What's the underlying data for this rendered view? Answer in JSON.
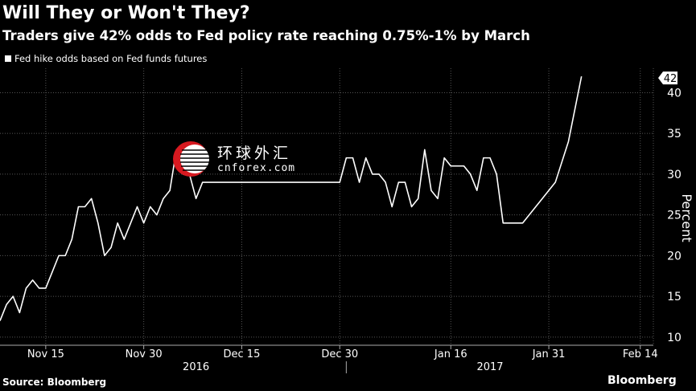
{
  "header": {
    "title": "Will They or Won't They?",
    "subtitle": "Traders give 42% odds to Fed policy rate reaching 0.75%-1% by March"
  },
  "legend": {
    "label": "Fed hike odds based on Fed funds futures"
  },
  "footer": {
    "source": "Source: Bloomberg",
    "brand": "Bloomberg"
  },
  "watermark": {
    "cn": "环球外汇",
    "en": "cnforex.com"
  },
  "colors": {
    "background": "#000000",
    "line": "#ffffff",
    "grid": "#555555"
  },
  "chart_data": {
    "type": "line",
    "title": "Will They or Won't They?",
    "subtitle": "Traders give 42% odds to Fed policy rate reaching 0.75%-1% by March",
    "xlabel": "",
    "ylabel": "Percent",
    "ylim": [
      9,
      43
    ],
    "yticks": [
      10,
      15,
      20,
      25,
      30,
      35,
      40
    ],
    "xlim": [
      "2016-11-08",
      "2017-02-16"
    ],
    "xticks": [
      {
        "date": "2016-11-15",
        "label": "Nov 15"
      },
      {
        "date": "2016-11-30",
        "label": "Nov 30"
      },
      {
        "date": "2016-12-15",
        "label": "Dec 15"
      },
      {
        "date": "2016-12-30",
        "label": "Dec 30"
      },
      {
        "date": "2017-01-16",
        "label": "Jan 16"
      },
      {
        "date": "2017-01-31",
        "label": "Jan 31"
      },
      {
        "date": "2017-02-14",
        "label": "Feb 14"
      }
    ],
    "year_labels": [
      {
        "label": "2016",
        "date": "2016-12-08"
      },
      {
        "label": "2017",
        "date": "2017-01-22"
      }
    ],
    "year_divider": "2016-12-31",
    "grid": true,
    "legend_position": "top-left",
    "end_label": "42",
    "series": [
      {
        "name": "Fed hike odds based on Fed funds futures",
        "points": [
          [
            "2016-11-08",
            12
          ],
          [
            "2016-11-09",
            14
          ],
          [
            "2016-11-10",
            15
          ],
          [
            "2016-11-11",
            13
          ],
          [
            "2016-11-12",
            16
          ],
          [
            "2016-11-13",
            17
          ],
          [
            "2016-11-14",
            16
          ],
          [
            "2016-11-15",
            16
          ],
          [
            "2016-11-16",
            18
          ],
          [
            "2016-11-17",
            20
          ],
          [
            "2016-11-18",
            20
          ],
          [
            "2016-11-19",
            22
          ],
          [
            "2016-11-20",
            26
          ],
          [
            "2016-11-21",
            26
          ],
          [
            "2016-11-22",
            27
          ],
          [
            "2016-11-23",
            24
          ],
          [
            "2016-11-24",
            20
          ],
          [
            "2016-11-25",
            21
          ],
          [
            "2016-11-26",
            24
          ],
          [
            "2016-11-27",
            22
          ],
          [
            "2016-11-28",
            24
          ],
          [
            "2016-11-29",
            26
          ],
          [
            "2016-11-30",
            24
          ],
          [
            "2016-12-01",
            26
          ],
          [
            "2016-12-02",
            25
          ],
          [
            "2016-12-03",
            27
          ],
          [
            "2016-12-04",
            28
          ],
          [
            "2016-12-05",
            33
          ],
          [
            "2016-12-06",
            30
          ],
          [
            "2016-12-07",
            30
          ],
          [
            "2016-12-08",
            27
          ],
          [
            "2016-12-09",
            29
          ],
          [
            "2016-12-30",
            29
          ],
          [
            "2016-12-31",
            32
          ],
          [
            "2017-01-01",
            32
          ],
          [
            "2017-01-02",
            29
          ],
          [
            "2017-01-03",
            32
          ],
          [
            "2017-01-04",
            30
          ],
          [
            "2017-01-05",
            30
          ],
          [
            "2017-01-06",
            29
          ],
          [
            "2017-01-07",
            26
          ],
          [
            "2017-01-08",
            29
          ],
          [
            "2017-01-09",
            29
          ],
          [
            "2017-01-10",
            26
          ],
          [
            "2017-01-11",
            27
          ],
          [
            "2017-01-12",
            33
          ],
          [
            "2017-01-13",
            28
          ],
          [
            "2017-01-14",
            27
          ],
          [
            "2017-01-15",
            32
          ],
          [
            "2017-01-16",
            31
          ],
          [
            "2017-01-17",
            31
          ],
          [
            "2017-01-18",
            31
          ],
          [
            "2017-01-19",
            30
          ],
          [
            "2017-01-20",
            28
          ],
          [
            "2017-01-21",
            32
          ],
          [
            "2017-01-22",
            32
          ],
          [
            "2017-01-23",
            30
          ],
          [
            "2017-01-24",
            24
          ],
          [
            "2017-01-27",
            24
          ],
          [
            "2017-01-30",
            27
          ],
          [
            "2017-02-01",
            29
          ],
          [
            "2017-02-03",
            34
          ],
          [
            "2017-02-05",
            42
          ]
        ]
      }
    ]
  }
}
